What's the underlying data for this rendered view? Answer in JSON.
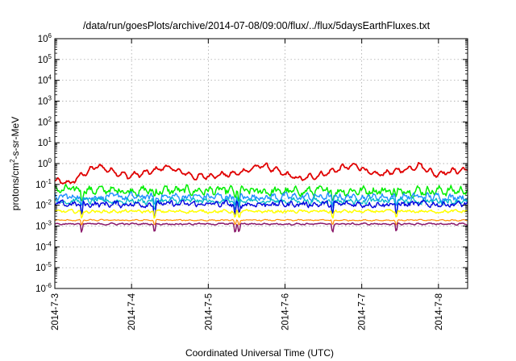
{
  "chart_data": {
    "type": "line",
    "title": "/data/run/goesPlots/archive/2014-07-08/09:00/flux/../flux/5daysEarthFluxes.txt",
    "xlabel": "Coordinated Universal Time (UTC)",
    "ylabel": {
      "base": "protons/cm",
      "exp": "2",
      "rest": "-s-sr-MeV"
    },
    "yscale": "log",
    "ylim_exp": [
      -6,
      6
    ],
    "y_ticks": [
      {
        "base": "10",
        "exp": "-6",
        "value": -6
      },
      {
        "base": "10",
        "exp": "-5",
        "value": -5
      },
      {
        "base": "10",
        "exp": "-4",
        "value": -4
      },
      {
        "base": "10",
        "exp": "-3",
        "value": -3
      },
      {
        "base": "10",
        "exp": "-2",
        "value": -2
      },
      {
        "base": "10",
        "exp": "-1",
        "value": -1
      },
      {
        "base": "10",
        "exp": "0",
        "value": 0
      },
      {
        "base": "10",
        "exp": "1",
        "value": 1
      },
      {
        "base": "10",
        "exp": "2",
        "value": 2
      },
      {
        "base": "10",
        "exp": "3",
        "value": 3
      },
      {
        "base": "10",
        "exp": "4",
        "value": 4
      },
      {
        "base": "10",
        "exp": "5",
        "value": 5
      },
      {
        "base": "10",
        "exp": "6",
        "value": 6
      }
    ],
    "xlim_days": [
      0,
      5.38
    ],
    "x_ticks": [
      {
        "label": "2014-7-3",
        "value": 0
      },
      {
        "label": "2014-7-4",
        "value": 1
      },
      {
        "label": "2014-7-5",
        "value": 2
      },
      {
        "label": "2014-7-6",
        "value": 3
      },
      {
        "label": "2014-7-7",
        "value": 4
      },
      {
        "label": "2014-7-8",
        "value": 5
      }
    ],
    "grid": true,
    "series": [
      {
        "color": "#e00000",
        "level": 0.28,
        "amp": 0.22,
        "noise": 0.12,
        "dip": 0.0,
        "width": 1.8,
        "anchors": [
          [
            0,
            -0.85
          ],
          [
            0.2,
            -0.95
          ],
          [
            0.35,
            -0.55
          ],
          [
            0.55,
            -0.12
          ],
          [
            0.75,
            -0.35
          ],
          [
            0.95,
            -0.6
          ],
          [
            1.2,
            -0.45
          ],
          [
            1.45,
            -0.15
          ],
          [
            1.6,
            -0.35
          ],
          [
            1.85,
            -0.65
          ],
          [
            2.1,
            -0.55
          ],
          [
            2.35,
            -0.5
          ],
          [
            2.6,
            -0.2
          ],
          [
            2.72,
            -0.08
          ],
          [
            2.95,
            -0.45
          ],
          [
            3.2,
            -0.75
          ],
          [
            3.5,
            -0.5
          ],
          [
            3.75,
            -0.2
          ],
          [
            3.95,
            -0.1
          ],
          [
            4.15,
            -0.55
          ],
          [
            4.4,
            -0.4
          ],
          [
            4.6,
            -0.25
          ],
          [
            4.75,
            -0.05
          ],
          [
            4.95,
            -0.5
          ],
          [
            5.2,
            -0.35
          ],
          [
            5.38,
            -0.3
          ]
        ]
      },
      {
        "color": "#00ee00",
        "level": -1.3,
        "amp": 0.2,
        "noise": 0.28,
        "dip": 0.5,
        "width": 1.5,
        "anchors": [
          [
            0,
            -1.25
          ],
          [
            1,
            -1.3
          ],
          [
            2,
            -1.3
          ],
          [
            3,
            -1.35
          ],
          [
            4,
            -1.3
          ],
          [
            5,
            -1.3
          ],
          [
            5.38,
            -1.3
          ]
        ]
      },
      {
        "color": "#1e90ff",
        "level": -1.6,
        "amp": 0.15,
        "noise": 0.25,
        "dip": 0.6,
        "width": 1.4,
        "anchors": [
          [
            0,
            -1.6
          ],
          [
            5.38,
            -1.6
          ]
        ]
      },
      {
        "color": "#00b8c8",
        "level": -1.8,
        "amp": 0.12,
        "noise": 0.2,
        "dip": 0.6,
        "width": 1.3,
        "anchors": [
          [
            0,
            -1.8
          ],
          [
            5.38,
            -1.8
          ]
        ]
      },
      {
        "color": "#0000e0",
        "level": -1.95,
        "amp": 0.12,
        "noise": 0.2,
        "dip": 0.7,
        "width": 1.4,
        "anchors": [
          [
            0,
            -1.95
          ],
          [
            5.38,
            -1.95
          ]
        ]
      },
      {
        "color": "#ffff00",
        "level": -2.3,
        "amp": 0.06,
        "noise": 0.1,
        "dip": 0.4,
        "width": 1.5,
        "anchors": [
          [
            0,
            -2.3
          ],
          [
            5.38,
            -2.3
          ]
        ]
      },
      {
        "color": "#ff8c00",
        "level": -2.72,
        "amp": 0.03,
        "noise": 0.04,
        "dip": 0.3,
        "width": 1.2,
        "anchors": [
          [
            0,
            -2.72
          ],
          [
            5.38,
            -2.72
          ]
        ]
      },
      {
        "color": "#8b1a6b",
        "level": -2.9,
        "amp": 0.04,
        "noise": 0.05,
        "dip": 0.5,
        "width": 1.5,
        "anchors": [
          [
            0,
            -2.9
          ],
          [
            5.38,
            -2.9
          ]
        ]
      }
    ],
    "dips_days": [
      0.35,
      1.3,
      2.35,
      2.4,
      3.62,
      4.45
    ]
  }
}
